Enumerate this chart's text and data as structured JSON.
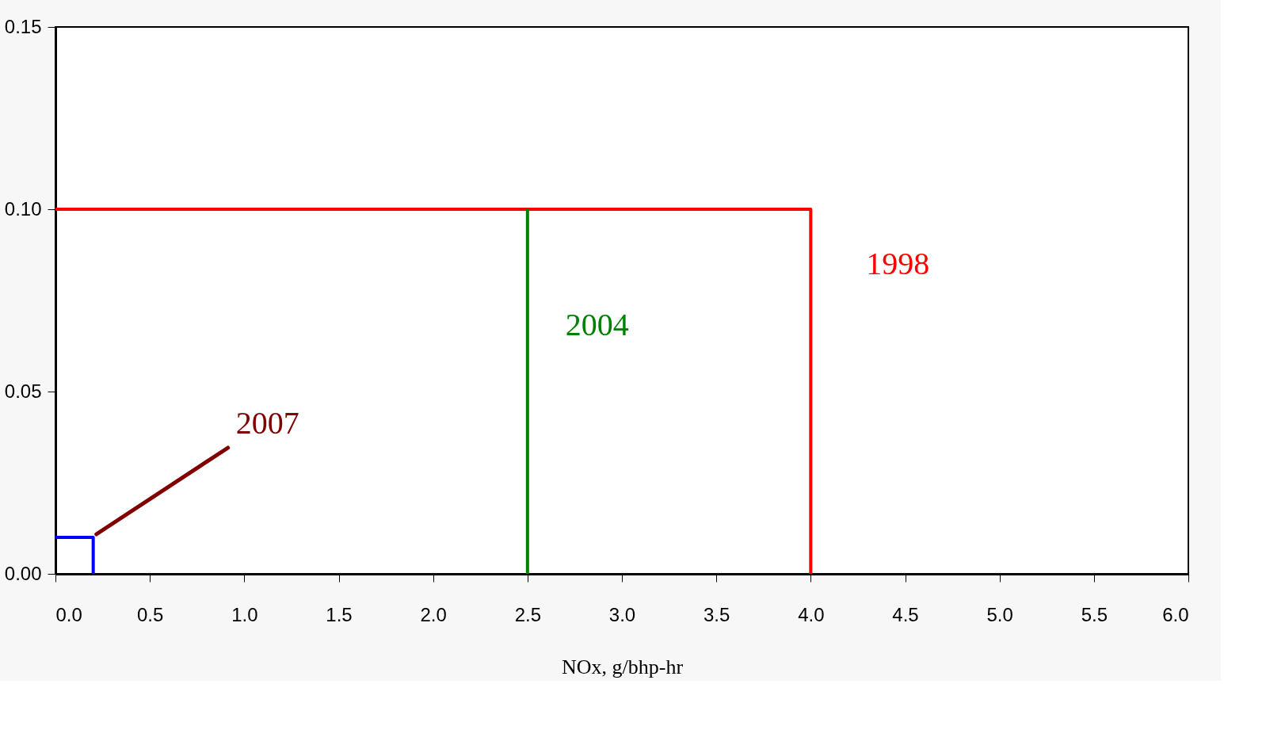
{
  "chart_data": {
    "type": "line",
    "xlabel": "NOx, g/bhp-hr",
    "series": [
      {
        "name": "1998",
        "color": "#ff0000",
        "x": [
          0,
          4,
          4
        ],
        "values": [
          0.1,
          0.1,
          0
        ]
      },
      {
        "name": "2004",
        "color": "#008000",
        "x": [
          2.5,
          2.5
        ],
        "values": [
          0,
          0.1
        ]
      },
      {
        "name": "2007",
        "color": "#0000ff",
        "x": [
          0,
          0.2,
          0.2
        ],
        "values": [
          0.01,
          0.01,
          0
        ]
      }
    ],
    "xlim": [
      0,
      6
    ],
    "ylim": [
      0,
      0.15
    ],
    "xticks": [
      {
        "value": 0,
        "label": "0.0"
      },
      {
        "value": 0.5,
        "label": "0.5"
      },
      {
        "value": 1,
        "label": "1.0"
      },
      {
        "value": 1.5,
        "label": "1.5"
      },
      {
        "value": 2,
        "label": "2.0"
      },
      {
        "value": 2.5,
        "label": "2.5"
      },
      {
        "value": 3,
        "label": "3.0"
      },
      {
        "value": 3.5,
        "label": "3.5"
      },
      {
        "value": 4,
        "label": "4.0"
      },
      {
        "value": 4.5,
        "label": "4.5"
      },
      {
        "value": 5,
        "label": "5.0"
      },
      {
        "value": 5.5,
        "label": "5.5"
      },
      {
        "value": 6,
        "label": "6.0"
      }
    ],
    "yticks": [
      {
        "value": 0,
        "label": "0.00"
      },
      {
        "value": 0.05,
        "label": "0.05"
      },
      {
        "value": 0.1,
        "label": "0.10"
      },
      {
        "value": 0.15,
        "label": "0.15"
      }
    ],
    "grid": false,
    "marker": "none",
    "line_style": "solid"
  }
}
